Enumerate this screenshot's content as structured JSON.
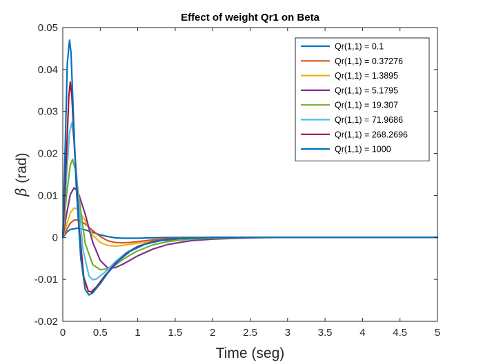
{
  "chart_data": {
    "type": "line",
    "title": "Effect of weight Qr1 on Beta",
    "xlabel": "Time (seg)",
    "ylabel_symbol": "β",
    "ylabel_unit": "(rad)",
    "xlim": [
      0,
      5
    ],
    "ylim": [
      -0.02,
      0.05
    ],
    "xticks": [
      0,
      0.5,
      1,
      1.5,
      2,
      2.5,
      3,
      3.5,
      4,
      4.5,
      5
    ],
    "xtick_labels": [
      "0",
      "0.5",
      "1",
      "1.5",
      "2",
      "2.5",
      "3",
      "3.5",
      "4",
      "4.5",
      "5"
    ],
    "yticks": [
      -0.02,
      -0.01,
      0,
      0.01,
      0.02,
      0.03,
      0.04,
      0.05
    ],
    "ytick_labels": [
      "-0.02",
      "-0.01",
      "0",
      "0.01",
      "0.02",
      "0.03",
      "0.04",
      "0.05"
    ],
    "grid": false,
    "legend_position": "top-right",
    "series": [
      {
        "name": "Qr(1,1) = 0.1",
        "color": "#0072BD",
        "points": [
          [
            0,
            0
          ],
          [
            0.05,
            0.0012
          ],
          [
            0.1,
            0.0019
          ],
          [
            0.2,
            0.0022
          ],
          [
            0.3,
            0.0018
          ],
          [
            0.4,
            0.0012
          ],
          [
            0.5,
            0.0006
          ],
          [
            0.6,
            0.0002
          ],
          [
            0.7,
            -0.0001
          ],
          [
            0.8,
            -0.0002
          ],
          [
            0.9,
            -0.0002
          ],
          [
            1.0,
            -0.0002
          ],
          [
            1.2,
            -0.0001
          ],
          [
            1.5,
            0
          ],
          [
            2.0,
            0
          ],
          [
            5,
            0
          ]
        ]
      },
      {
        "name": "Qr(1,1) = 0.37276",
        "color": "#D95319",
        "points": [
          [
            0,
            0
          ],
          [
            0.05,
            0.0018
          ],
          [
            0.1,
            0.0034
          ],
          [
            0.15,
            0.0041
          ],
          [
            0.2,
            0.0042
          ],
          [
            0.3,
            0.0032
          ],
          [
            0.4,
            0.0016
          ],
          [
            0.5,
            0.0002
          ],
          [
            0.6,
            -0.0008
          ],
          [
            0.7,
            -0.0012
          ],
          [
            0.8,
            -0.0013
          ],
          [
            0.9,
            -0.0012
          ],
          [
            1.0,
            -0.001
          ],
          [
            1.2,
            -0.0006
          ],
          [
            1.5,
            -0.0002
          ],
          [
            2.0,
            0
          ],
          [
            5,
            0
          ]
        ]
      },
      {
        "name": "Qr(1,1) = 1.3895",
        "color": "#EDB120",
        "points": [
          [
            0,
            0
          ],
          [
            0.05,
            0.003
          ],
          [
            0.1,
            0.0058
          ],
          [
            0.15,
            0.007
          ],
          [
            0.2,
            0.0068
          ],
          [
            0.3,
            0.004
          ],
          [
            0.4,
            0.0005
          ],
          [
            0.5,
            -0.0012
          ],
          [
            0.6,
            -0.0019
          ],
          [
            0.7,
            -0.0021
          ],
          [
            0.8,
            -0.0019
          ],
          [
            1.0,
            -0.0014
          ],
          [
            1.3,
            -0.0008
          ],
          [
            1.6,
            -0.0004
          ],
          [
            2.0,
            -0.0002
          ],
          [
            2.5,
            0
          ],
          [
            5,
            0
          ]
        ]
      },
      {
        "name": "Qr(1,1) = 5.1795",
        "color": "#7E2F8E",
        "points": [
          [
            0,
            0
          ],
          [
            0.05,
            0.0055
          ],
          [
            0.1,
            0.0102
          ],
          [
            0.15,
            0.0118
          ],
          [
            0.2,
            0.011
          ],
          [
            0.3,
            0.0055
          ],
          [
            0.4,
            -0.0012
          ],
          [
            0.5,
            -0.0055
          ],
          [
            0.6,
            -0.0073
          ],
          [
            0.7,
            -0.0072
          ],
          [
            0.8,
            -0.0064
          ],
          [
            0.9,
            -0.0054
          ],
          [
            1.0,
            -0.0044
          ],
          [
            1.2,
            -0.0028
          ],
          [
            1.4,
            -0.0017
          ],
          [
            1.7,
            -0.0008
          ],
          [
            2.0,
            -0.0004
          ],
          [
            2.5,
            -0.0001
          ],
          [
            3.0,
            0
          ],
          [
            5,
            0
          ]
        ]
      },
      {
        "name": "Qr(1,1) = 19.307",
        "color": "#77AC30",
        "points": [
          [
            0,
            0
          ],
          [
            0.05,
            0.01
          ],
          [
            0.1,
            0.0172
          ],
          [
            0.13,
            0.0186
          ],
          [
            0.17,
            0.016
          ],
          [
            0.22,
            0.009
          ],
          [
            0.3,
            -0.0015
          ],
          [
            0.4,
            -0.0065
          ],
          [
            0.5,
            -0.0077
          ],
          [
            0.6,
            -0.0075
          ],
          [
            0.7,
            -0.0066
          ],
          [
            0.8,
            -0.0053
          ],
          [
            0.9,
            -0.0042
          ],
          [
            1.0,
            -0.0032
          ],
          [
            1.2,
            -0.0018
          ],
          [
            1.4,
            -0.001
          ],
          [
            1.7,
            -0.0004
          ],
          [
            2.0,
            -0.0002
          ],
          [
            2.5,
            0
          ],
          [
            5,
            0
          ]
        ]
      },
      {
        "name": "Qr(1,1) = 71.9686",
        "color": "#4DBEEE",
        "points": [
          [
            0,
            0
          ],
          [
            0.05,
            0.0145
          ],
          [
            0.09,
            0.025
          ],
          [
            0.12,
            0.0273
          ],
          [
            0.15,
            0.023
          ],
          [
            0.2,
            0.011
          ],
          [
            0.27,
            -0.003
          ],
          [
            0.35,
            -0.0092
          ],
          [
            0.4,
            -0.0101
          ],
          [
            0.45,
            -0.0099
          ],
          [
            0.55,
            -0.0085
          ],
          [
            0.7,
            -0.0058
          ],
          [
            0.85,
            -0.0036
          ],
          [
            1.0,
            -0.0021
          ],
          [
            1.2,
            -0.001
          ],
          [
            1.5,
            -0.0003
          ],
          [
            2.0,
            0
          ],
          [
            5,
            0
          ]
        ]
      },
      {
        "name": "Qr(1,1) = 268.2696",
        "color": "#A2142F",
        "points": [
          [
            0,
            0
          ],
          [
            0.05,
            0.02
          ],
          [
            0.08,
            0.0335
          ],
          [
            0.1,
            0.037
          ],
          [
            0.12,
            0.034
          ],
          [
            0.16,
            0.02
          ],
          [
            0.22,
            0.002
          ],
          [
            0.28,
            -0.0095
          ],
          [
            0.34,
            -0.0128
          ],
          [
            0.38,
            -0.013
          ],
          [
            0.45,
            -0.0118
          ],
          [
            0.55,
            -0.0094
          ],
          [
            0.7,
            -0.0062
          ],
          [
            0.85,
            -0.0038
          ],
          [
            1.0,
            -0.0022
          ],
          [
            1.2,
            -0.001
          ],
          [
            1.5,
            -0.0003
          ],
          [
            2.0,
            0
          ],
          [
            5,
            0
          ]
        ]
      },
      {
        "name": "Qr(1,1) = 1000",
        "color": "#0072BD",
        "points": [
          [
            0,
            0
          ],
          [
            0.03,
            0.02
          ],
          [
            0.06,
            0.0415
          ],
          [
            0.09,
            0.047
          ],
          [
            0.11,
            0.044
          ],
          [
            0.14,
            0.03
          ],
          [
            0.18,
            0.012
          ],
          [
            0.24,
            -0.005
          ],
          [
            0.3,
            -0.0125
          ],
          [
            0.35,
            -0.0137
          ],
          [
            0.4,
            -0.0132
          ],
          [
            0.5,
            -0.011
          ],
          [
            0.6,
            -0.0085
          ],
          [
            0.75,
            -0.0055
          ],
          [
            0.9,
            -0.0033
          ],
          [
            1.1,
            -0.0016
          ],
          [
            1.3,
            -0.0008
          ],
          [
            1.6,
            -0.0002
          ],
          [
            2.0,
            0
          ],
          [
            5,
            0
          ]
        ]
      }
    ]
  }
}
